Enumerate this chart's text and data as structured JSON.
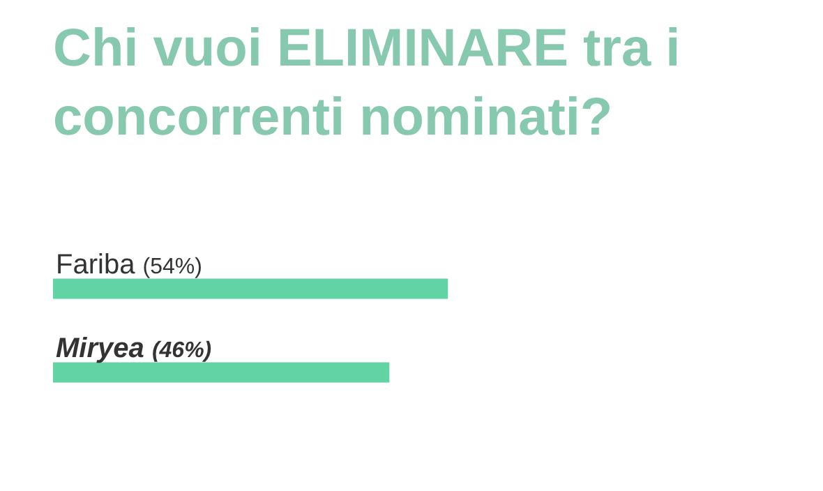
{
  "chart_data": {
    "type": "bar",
    "orientation": "horizontal",
    "title": "Chi vuoi ELIMINARE tra i concorrenti nominati?",
    "categories": [
      "Fariba",
      "Miryea"
    ],
    "values": [
      54,
      46
    ],
    "value_labels": [
      "(54%)",
      "(46%)"
    ],
    "color": "#62d3a3",
    "tick_labels": false,
    "legend": false
  }
}
